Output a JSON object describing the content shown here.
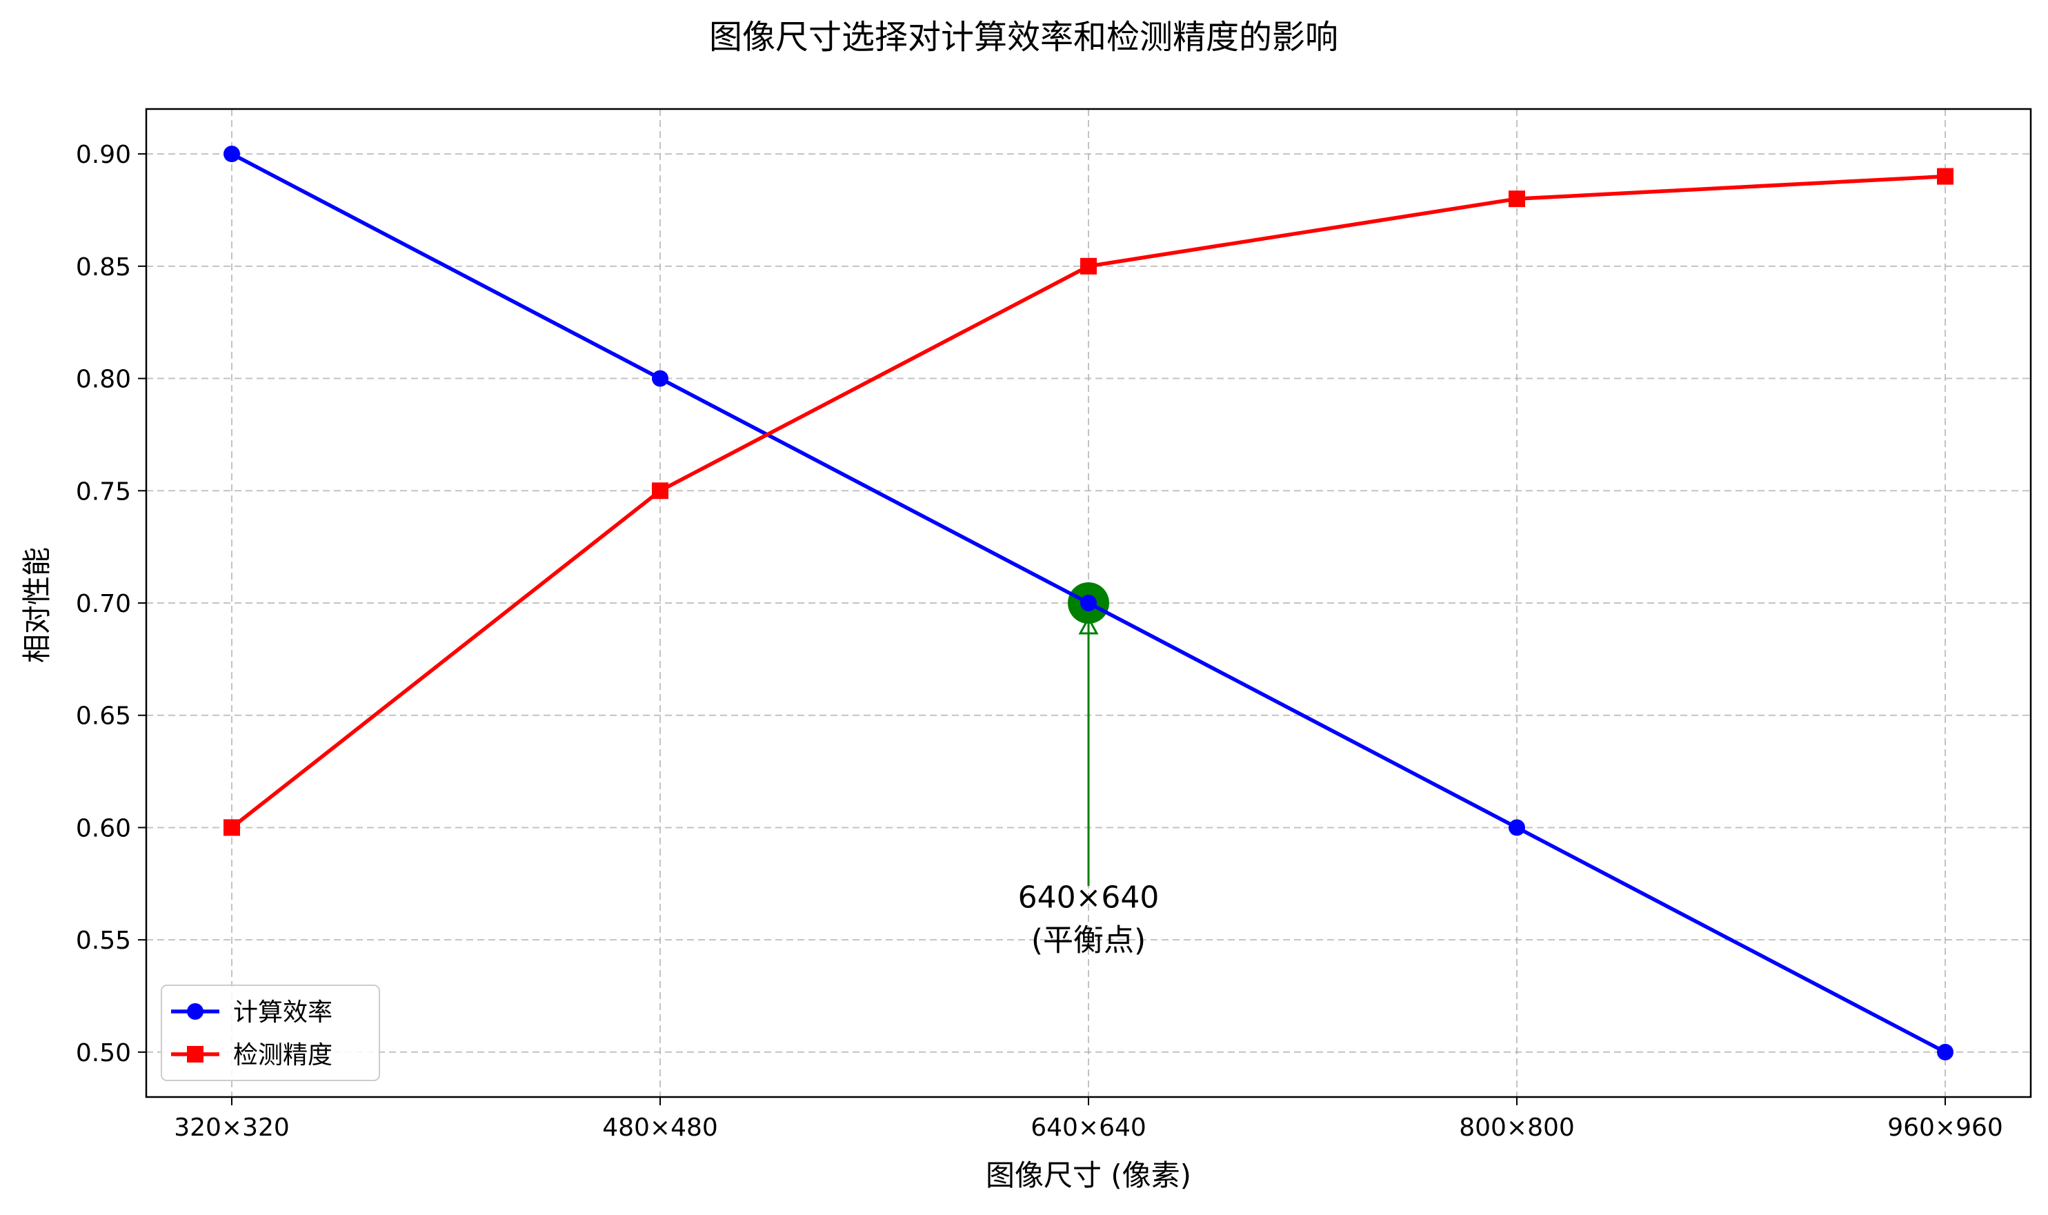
{
  "colors": {
    "efficiency": "#0000ff",
    "accuracy": "#ff0000",
    "annotation": "#008000"
  },
  "chart_data": {
    "type": "line",
    "title": "图像尺寸选择对计算效率和检测精度的影响",
    "xlabel": "图像尺寸 (像素)",
    "ylabel": "相对性能",
    "categories": [
      "320×320",
      "480×480",
      "640×640",
      "800×800",
      "960×960"
    ],
    "ylim": [
      0.48,
      0.92
    ],
    "yticks": [
      "0.50",
      "0.55",
      "0.60",
      "0.65",
      "0.70",
      "0.75",
      "0.80",
      "0.85",
      "0.90"
    ],
    "grid": true,
    "legend_position": "bottom-left",
    "series": [
      {
        "name": "计算效率",
        "marker": "circle",
        "values": [
          0.9,
          0.8,
          0.7,
          0.6,
          0.5
        ]
      },
      {
        "name": "检测精度",
        "marker": "square",
        "values": [
          0.6,
          0.75,
          0.85,
          0.88,
          0.89
        ]
      }
    ],
    "annotation": {
      "line1": "640×640",
      "line2": "(平衡点)",
      "point_category": "640×640",
      "point_value": 0.7,
      "text_value": 0.56
    }
  }
}
